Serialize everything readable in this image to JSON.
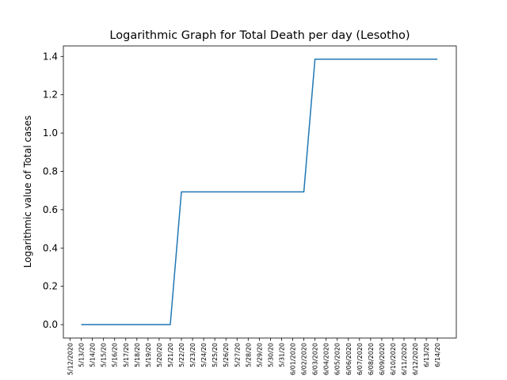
{
  "chart_data": {
    "type": "line",
    "title": "Logarithmic Graph for Total Death per day (Lesotho)",
    "xlabel": "",
    "ylabel": "Logarithmic value of Total cases",
    "ylim": [
      -0.07,
      1.455
    ],
    "yticks": [
      0.0,
      0.2,
      0.4,
      0.6,
      0.8,
      1.0,
      1.2,
      1.4
    ],
    "ytick_labels": [
      "0.0",
      "0.2",
      "0.4",
      "0.6",
      "0.8",
      "1.0",
      "1.2",
      "1.4"
    ],
    "grid": false,
    "legend": "none",
    "categories": [
      "5/12/2020",
      "5/13/20",
      "5/14/20",
      "5/15/20",
      "5/16/20",
      "5/17/20",
      "5/18/20",
      "5/19/20",
      "5/20/20",
      "5/21/20",
      "5/22/20",
      "5/23/20",
      "5/24/20",
      "5/25/20",
      "5/26/20",
      "5/27/20",
      "5/28/20",
      "5/29/20",
      "5/30/20",
      "5/31/20",
      "6/01/2020",
      "6/02/2020",
      "6/03/2020",
      "6/04/2020",
      "6/05/2020",
      "6/06/2020",
      "6/07/2020",
      "6/08/2020",
      "6/09/2020",
      "6/10/2020",
      "6/11/2020",
      "6/12/2020",
      "6/13/20",
      "6/14/20"
    ],
    "series": [
      {
        "values": [
          null,
          0,
          0,
          0,
          0,
          0,
          0,
          0,
          0,
          0,
          0.693,
          0.693,
          0.693,
          0.693,
          0.693,
          0.693,
          0.693,
          0.693,
          0.693,
          0.693,
          0.693,
          0.693,
          1.386,
          1.386,
          1.386,
          1.386,
          1.386,
          1.386,
          1.386,
          1.386,
          1.386,
          1.386,
          1.386,
          1.386
        ]
      }
    ],
    "line_color": "#1f77b4"
  }
}
